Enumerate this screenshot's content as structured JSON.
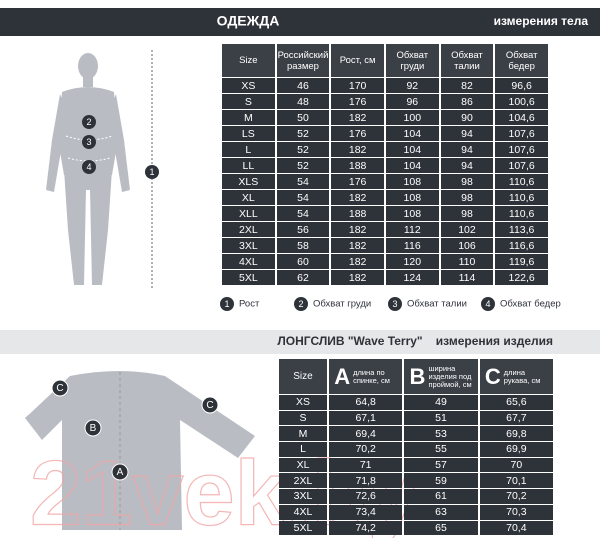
{
  "header": {
    "title": "ОДЕЖДА",
    "subtitle": "измерения тела"
  },
  "body_table": {
    "columns": [
      "Size",
      "Российский размер",
      "Рост, см",
      "Обхват груди",
      "Обхват талии",
      "Обхват бедер"
    ],
    "rows": [
      [
        "XS",
        "46",
        "170",
        "92",
        "82",
        "96,6"
      ],
      [
        "S",
        "48",
        "176",
        "96",
        "86",
        "100,6"
      ],
      [
        "M",
        "50",
        "182",
        "100",
        "90",
        "104,6"
      ],
      [
        "LS",
        "52",
        "176",
        "104",
        "94",
        "107,6"
      ],
      [
        "L",
        "52",
        "182",
        "104",
        "94",
        "107,6"
      ],
      [
        "LL",
        "52",
        "188",
        "104",
        "94",
        "107,6"
      ],
      [
        "XLS",
        "54",
        "176",
        "108",
        "98",
        "110,6"
      ],
      [
        "XL",
        "54",
        "182",
        "108",
        "98",
        "110,6"
      ],
      [
        "XLL",
        "54",
        "188",
        "108",
        "98",
        "110,6"
      ],
      [
        "2XL",
        "56",
        "182",
        "112",
        "102",
        "113,6"
      ],
      [
        "3XL",
        "58",
        "182",
        "116",
        "106",
        "116,6"
      ],
      [
        "4XL",
        "60",
        "182",
        "120",
        "110",
        "119,6"
      ],
      [
        "5XL",
        "62",
        "182",
        "124",
        "114",
        "122,6"
      ]
    ]
  },
  "legend": [
    {
      "number": "1",
      "label": "Рост"
    },
    {
      "number": "2",
      "label": "Обхват груди"
    },
    {
      "number": "3",
      "label": "Обхват талии"
    },
    {
      "number": "4",
      "label": "Обхват бедер"
    }
  ],
  "product": {
    "title": "ЛОНГСЛИВ \"Wave Terry\"",
    "subtitle": "измерения изделия"
  },
  "product_table": {
    "columns": [
      {
        "label": "Size"
      },
      {
        "letter": "A",
        "label": "длина по спинке, см"
      },
      {
        "letter": "B",
        "label": "ширина изделия под проймой, см"
      },
      {
        "letter": "C",
        "label": "длина рукава, см"
      }
    ],
    "rows": [
      [
        "XS",
        "64,8",
        "49",
        "65,6"
      ],
      [
        "S",
        "67,1",
        "51",
        "67,7"
      ],
      [
        "M",
        "69,4",
        "53",
        "69,8"
      ],
      [
        "L",
        "70,2",
        "55",
        "69,9"
      ],
      [
        "XL",
        "71",
        "57",
        "70"
      ],
      [
        "2XL",
        "71,8",
        "59",
        "70,1"
      ],
      [
        "3XL",
        "72,6",
        "61",
        "70,2"
      ],
      [
        "4XL",
        "73,4",
        "63",
        "70,3"
      ],
      [
        "5XL",
        "74,2",
        "65",
        "70,4"
      ]
    ]
  },
  "watermark": "21vek.by"
}
